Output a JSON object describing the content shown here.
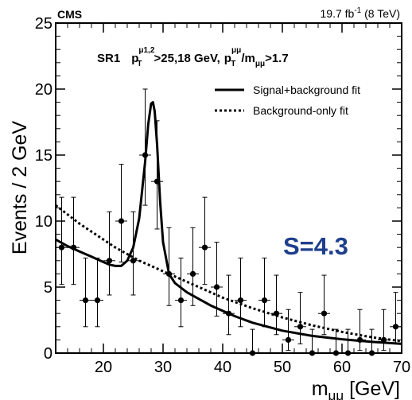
{
  "chart_data": {
    "type": "scatter",
    "experiment": "CMS",
    "luminosity": "19.7 fb",
    "lumi_sup": "-1",
    "lumi_energy": " (8 TeV)",
    "ylabel": "Events / 2 GeV",
    "xlabel": {
      "base": "m",
      "sub": "μμ",
      "unit": " [GeV]"
    },
    "xlim": [
      12,
      70
    ],
    "ylim": [
      0,
      25
    ],
    "xticks": [
      20,
      30,
      40,
      50,
      60,
      70
    ],
    "yticks": [
      0,
      5,
      10,
      15,
      20,
      25
    ],
    "selection": {
      "region": "SR1",
      "p": "p",
      "T": "T",
      "pt_sup": "μ1,2",
      "pt_cut": ">25,18 GeV,",
      "ratio_p": "p",
      "ratio_T": "T",
      "ratio_sup": "μμ",
      "ratio_slash": "/m",
      "ratio_sub": "μμ",
      "ratio_cut": ">1.7"
    },
    "significance": "S=4.3",
    "legend": [
      {
        "label": "Signal+background fit",
        "style": "solid"
      },
      {
        "label": "Background-only fit",
        "style": "dotted"
      }
    ],
    "data_points": [
      {
        "x": 13,
        "y": 8,
        "lo": 2.8,
        "hi": 3.8
      },
      {
        "x": 15,
        "y": 8,
        "lo": 2.8,
        "hi": 3.8
      },
      {
        "x": 17,
        "y": 4,
        "lo": 2.0,
        "hi": 3.2
      },
      {
        "x": 19,
        "y": 4,
        "lo": 2.0,
        "hi": 3.2
      },
      {
        "x": 21,
        "y": 7,
        "lo": 2.6,
        "hi": 3.7
      },
      {
        "x": 23,
        "y": 10,
        "lo": 3.1,
        "hi": 4.3
      },
      {
        "x": 25,
        "y": 7,
        "lo": 2.6,
        "hi": 3.7
      },
      {
        "x": 27,
        "y": 15,
        "lo": 3.8,
        "hi": 5.0
      },
      {
        "x": 29,
        "y": 13,
        "lo": 3.6,
        "hi": 4.6
      },
      {
        "x": 31,
        "y": 6,
        "lo": 2.4,
        "hi": 3.5
      },
      {
        "x": 33,
        "y": 4,
        "lo": 2.0,
        "hi": 3.2
      },
      {
        "x": 35,
        "y": 6,
        "lo": 2.4,
        "hi": 3.5
      },
      {
        "x": 37,
        "y": 8,
        "lo": 2.8,
        "hi": 3.8
      },
      {
        "x": 39,
        "y": 5,
        "lo": 2.2,
        "hi": 3.4
      },
      {
        "x": 41,
        "y": 3,
        "lo": 1.6,
        "hi": 2.9
      },
      {
        "x": 43,
        "y": 4,
        "lo": 2.0,
        "hi": 3.2
      },
      {
        "x": 45,
        "y": 0,
        "lo": 0,
        "hi": 1.8
      },
      {
        "x": 47,
        "y": 4,
        "lo": 2.0,
        "hi": 3.2
      },
      {
        "x": 49,
        "y": 3,
        "lo": 1.6,
        "hi": 2.9
      },
      {
        "x": 51,
        "y": 1,
        "lo": 0.8,
        "hi": 2.3
      },
      {
        "x": 53,
        "y": 2,
        "lo": 1.3,
        "hi": 2.6
      },
      {
        "x": 55,
        "y": 0,
        "lo": 0,
        "hi": 1.8
      },
      {
        "x": 57,
        "y": 3,
        "lo": 1.6,
        "hi": 2.9
      },
      {
        "x": 59,
        "y": 0,
        "lo": 0,
        "hi": 1.8
      },
      {
        "x": 61,
        "y": 0,
        "lo": 0,
        "hi": 1.8
      },
      {
        "x": 63,
        "y": 1,
        "lo": 0.8,
        "hi": 2.3
      },
      {
        "x": 65,
        "y": 0,
        "lo": 0,
        "hi": 1.8
      },
      {
        "x": 67,
        "y": 1,
        "lo": 0.8,
        "hi": 2.3
      },
      {
        "x": 69,
        "y": 2,
        "lo": 1.3,
        "hi": 2.6
      }
    ],
    "series": [
      {
        "name": "Signal+background fit",
        "style": "solid",
        "x": [
          12,
          14,
          16,
          18,
          20,
          21,
          22,
          23,
          24,
          25,
          26,
          27,
          27.5,
          28,
          28.3,
          28.6,
          29,
          29.5,
          30,
          31,
          32,
          34,
          36,
          38,
          40,
          42,
          45,
          50,
          55,
          60,
          65,
          70
        ],
        "y": [
          8.6,
          8.1,
          7.7,
          7.3,
          6.9,
          6.7,
          6.6,
          6.6,
          7.0,
          8.0,
          10.2,
          14.5,
          17.3,
          18.9,
          19.0,
          18.3,
          15.8,
          11.5,
          8.4,
          6.0,
          5.3,
          4.6,
          4.1,
          3.6,
          3.2,
          2.8,
          2.3,
          1.7,
          1.3,
          1.05,
          0.85,
          0.7
        ]
      },
      {
        "name": "Background-only fit",
        "style": "dotted",
        "x": [
          12,
          14,
          16,
          18,
          20,
          22,
          24,
          26,
          28,
          30,
          32,
          35,
          38,
          40,
          45,
          50,
          55,
          60,
          65,
          70
        ],
        "y": [
          11.2,
          10.5,
          9.8,
          9.2,
          8.6,
          8.0,
          7.5,
          7.0,
          6.6,
          6.2,
          5.8,
          5.2,
          4.6,
          4.2,
          3.4,
          2.7,
          2.1,
          1.6,
          1.2,
          0.9
        ]
      }
    ]
  }
}
